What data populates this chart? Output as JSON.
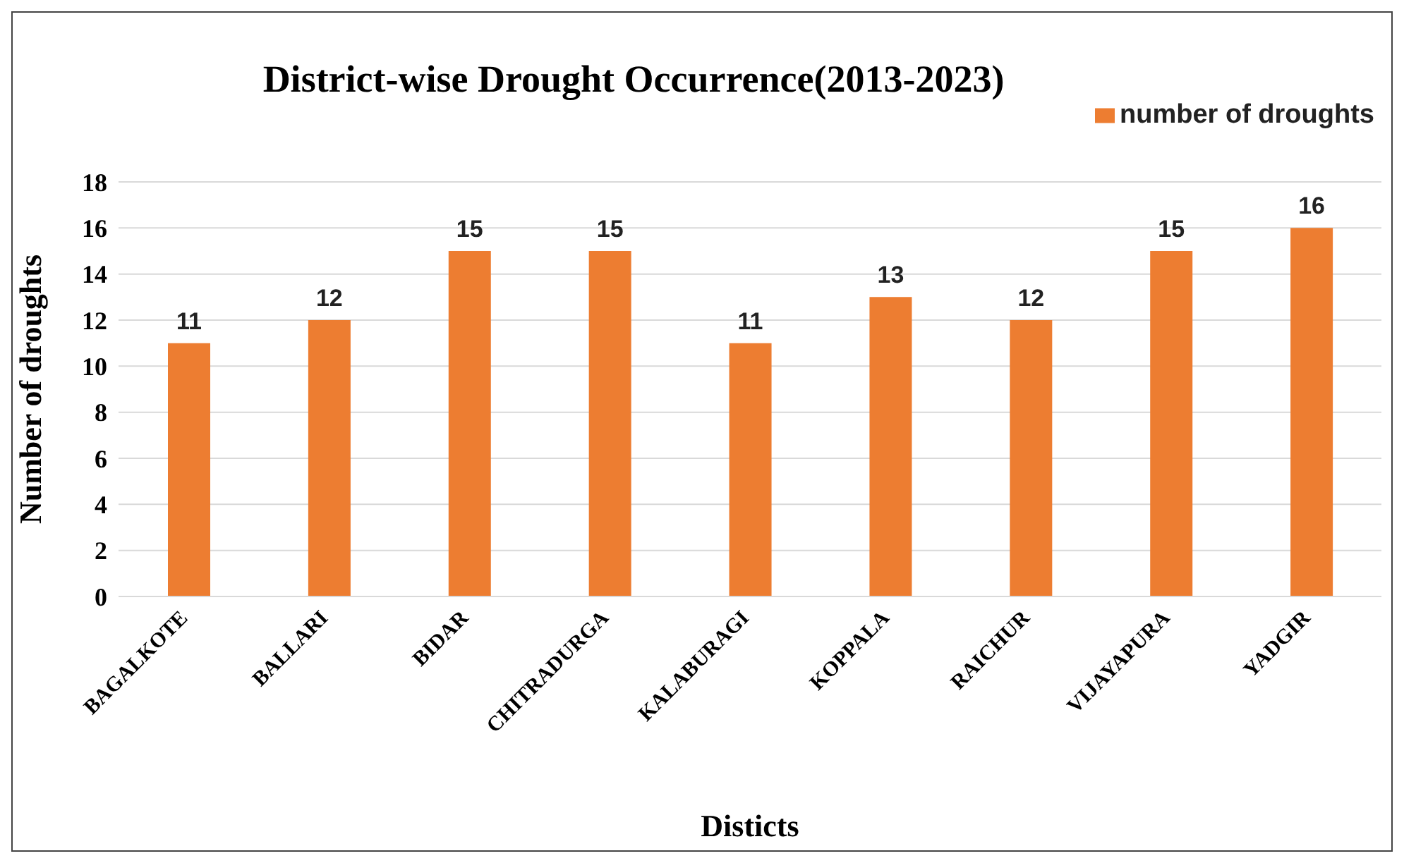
{
  "chart_data": {
    "type": "bar",
    "title": "District-wise Drought Occurrence(2013-2023)",
    "xlabel": "Disticts",
    "ylabel": "Number of droughts",
    "categories": [
      "BAGALKOTE",
      "BALLARI",
      "BIDAR",
      "CHITRADURGA",
      "KALABURAGI",
      "KOPPALA",
      "RAICHUR",
      "VIJAYAPURA",
      "YADGIR"
    ],
    "series": [
      {
        "name": "number of droughts",
        "color": "#ed7d31",
        "values": [
          11,
          12,
          15,
          15,
          11,
          13,
          12,
          15,
          16
        ]
      }
    ],
    "ylim": [
      0,
      18
    ],
    "yticks": [
      0,
      2,
      4,
      6,
      8,
      10,
      12,
      14,
      16,
      18
    ],
    "grid": "y",
    "legend": "top right",
    "data_labels": true
  }
}
